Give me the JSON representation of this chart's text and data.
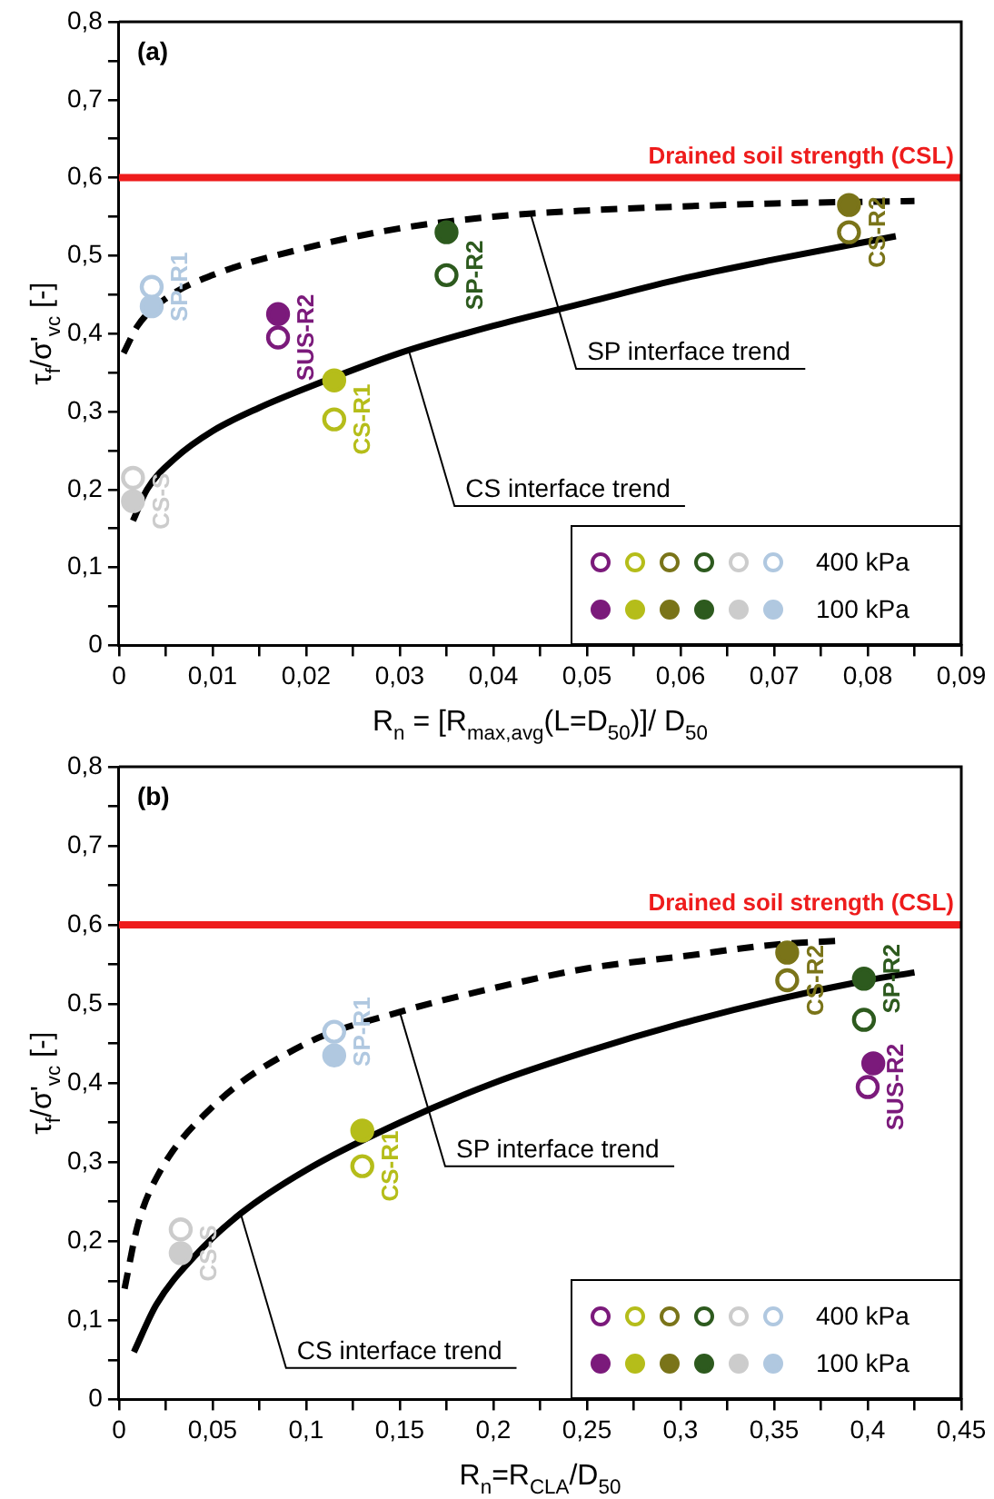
{
  "chart_data": [
    {
      "type": "scatter",
      "title": "(a)",
      "xlabel": "R$_{n}$ = [R$_{max,avg}$(L=D$_{50}$)]/ D$_{50}$",
      "ylabel": "τ$_{f}$/σ'$_{vc}$ [-]",
      "marker": "circle",
      "legend": "bottom right",
      "xlim": [
        0,
        0.09
      ],
      "ylim": [
        0,
        0.8
      ],
      "xticks": [
        0,
        {
          "value": 0.005,
          "label": null
        },
        {
          "value": 0.01,
          "label": "0,01"
        },
        {
          "value": 0.015,
          "label": null
        },
        {
          "value": 0.02,
          "label": "0,02"
        },
        {
          "value": 0.025,
          "label": null
        },
        {
          "value": 0.03,
          "label": "0,03"
        },
        {
          "value": 0.035,
          "label": null
        },
        {
          "value": 0.04,
          "label": "0,04"
        },
        {
          "value": 0.045,
          "label": null
        },
        {
          "value": 0.05,
          "label": "0,05"
        },
        {
          "value": 0.055,
          "label": null
        },
        {
          "value": 0.06,
          "label": "0,06"
        },
        {
          "value": 0.065,
          "label": null
        },
        {
          "value": 0.07,
          "label": "0,07"
        },
        {
          "value": 0.075,
          "label": null
        },
        {
          "value": 0.08,
          "label": "0,08"
        },
        {
          "value": 0.085,
          "label": null
        },
        {
          "value": 0.09,
          "label": "0,09"
        }
      ],
      "yticks": [
        0,
        {
          "value": 0.05,
          "label": null
        },
        {
          "value": 0.1,
          "label": "0,1"
        },
        {
          "value": 0.15,
          "label": null
        },
        {
          "value": 0.2,
          "label": "0,2"
        },
        {
          "value": 0.25,
          "label": null
        },
        {
          "value": 0.3,
          "label": "0,3"
        },
        {
          "value": 0.35,
          "label": null
        },
        {
          "value": 0.4,
          "label": "0,4"
        },
        {
          "value": 0.45,
          "label": null
        },
        {
          "value": 0.5,
          "label": "0,5"
        },
        {
          "value": 0.55,
          "label": null
        },
        {
          "value": 0.6,
          "label": "0,6"
        },
        {
          "value": 0.65,
          "label": null
        },
        {
          "value": 0.7,
          "label": "0,7"
        },
        {
          "value": 0.75,
          "label": null
        },
        {
          "value": 0.8,
          "label": "0,8"
        }
      ],
      "ref_lines": [
        {
          "axis": "y",
          "value": 0.6,
          "label": "Drained soil strength (CSL)",
          "color": "#ee1c1c"
        }
      ],
      "series": [
        {
          "name": "400 kPa",
          "x": [
            0.017,
            0.023,
            0.078,
            0.035,
            0.0015,
            0.0035
          ],
          "values": [
            0.395,
            0.29,
            0.53,
            0.475,
            0.215,
            0.46
          ],
          "colors": [
            "#7b1a7b",
            "#b5bd1a",
            "#7a7419",
            "#2d5a1e",
            "#cccccc",
            "#b0c8e0"
          ]
        },
        {
          "name": "100 kPa",
          "x": [
            0.017,
            0.023,
            0.078,
            0.035,
            0.0015,
            0.0035
          ],
          "values": [
            0.425,
            0.34,
            0.565,
            0.53,
            0.185,
            0.435
          ],
          "colors": [
            "#7b1a7b",
            "#b5bd1a",
            "#7a7419",
            "#2d5a1e",
            "#cccccc",
            "#b0c8e0"
          ]
        },
        {
          "type": "line",
          "marker": "none",
          "line_style": "dashed",
          "color": "#000000",
          "x": [
            0.0005,
            0.002,
            0.005,
            0.01,
            0.02,
            0.03,
            0.04,
            0.05,
            0.06,
            0.07,
            0.085
          ],
          "values": [
            0.375,
            0.41,
            0.445,
            0.475,
            0.51,
            0.535,
            0.55,
            0.558,
            0.563,
            0.567,
            0.57
          ]
        },
        {
          "type": "line",
          "marker": "none",
          "line_style": "solid",
          "color": "#000000",
          "x": [
            0.0015,
            0.003,
            0.006,
            0.01,
            0.015,
            0.02,
            0.03,
            0.04,
            0.05,
            0.06,
            0.07,
            0.083
          ],
          "values": [
            0.16,
            0.2,
            0.24,
            0.275,
            0.305,
            0.33,
            0.375,
            0.41,
            0.44,
            0.47,
            0.495,
            0.525
          ]
        }
      ],
      "annotations": [
        {
          "text": "SP-R1",
          "x": 0.0035,
          "y": 0.46
        },
        {
          "text": "SUS-R2",
          "x": 0.017,
          "y": 0.395
        },
        {
          "text": "CS-R1",
          "x": 0.023,
          "y": 0.29
        },
        {
          "text": "CS-S",
          "x": 0.0015,
          "y": 0.185
        },
        {
          "text": "SP-R2",
          "x": 0.035,
          "y": 0.475
        },
        {
          "text": "CS-R2",
          "x": 0.078,
          "y": 0.53
        },
        {
          "text": "SP interface trend",
          "x": 0.044,
          "y": 0.553
        },
        {
          "text": "CS interface trend",
          "x": 0.031,
          "y": 0.377
        }
      ]
    },
    {
      "type": "scatter",
      "title": "(b)",
      "xlabel": "R$_{n}$=R$_{CLA}$/D$_{50}$",
      "ylabel": "τ$_{f}$/σ'$_{vc}$ [-]",
      "marker": "circle",
      "legend": "bottom right",
      "xlim": [
        0,
        0.45
      ],
      "ylim": [
        0,
        0.8
      ],
      "xticks": [
        0,
        {
          "value": 0.025,
          "label": null
        },
        {
          "value": 0.05,
          "label": "0,05"
        },
        {
          "value": 0.075,
          "label": null
        },
        {
          "value": 0.1,
          "label": "0,1"
        },
        {
          "value": 0.125,
          "label": null
        },
        {
          "value": 0.15,
          "label": "0,15"
        },
        {
          "value": 0.175,
          "label": null
        },
        {
          "value": 0.2,
          "label": "0,2"
        },
        {
          "value": 0.225,
          "label": null
        },
        {
          "value": 0.25,
          "label": "0,25"
        },
        {
          "value": 0.275,
          "label": null
        },
        {
          "value": 0.3,
          "label": "0,3"
        },
        {
          "value": 0.325,
          "label": null
        },
        {
          "value": 0.35,
          "label": "0,35"
        },
        {
          "value": 0.375,
          "label": null
        },
        {
          "value": 0.4,
          "label": "0,4"
        },
        {
          "value": 0.425,
          "label": null
        },
        {
          "value": 0.45,
          "label": "0,45"
        }
      ],
      "yticks": [
        0,
        {
          "value": 0.05,
          "label": null
        },
        {
          "value": 0.1,
          "label": "0,1"
        },
        {
          "value": 0.15,
          "label": null
        },
        {
          "value": 0.2,
          "label": "0,2"
        },
        {
          "value": 0.25,
          "label": null
        },
        {
          "value": 0.3,
          "label": "0,3"
        },
        {
          "value": 0.35,
          "label": null
        },
        {
          "value": 0.4,
          "label": "0,4"
        },
        {
          "value": 0.45,
          "label": null
        },
        {
          "value": 0.5,
          "label": "0,5"
        },
        {
          "value": 0.55,
          "label": null
        },
        {
          "value": 0.6,
          "label": "0,6"
        },
        {
          "value": 0.65,
          "label": null
        },
        {
          "value": 0.7,
          "label": "0,7"
        },
        {
          "value": 0.75,
          "label": null
        },
        {
          "value": 0.8,
          "label": "0,8"
        }
      ],
      "ref_lines": [
        {
          "axis": "y",
          "value": 0.6,
          "label": "Drained soil strength (CSL)",
          "color": "#ee1c1c"
        }
      ],
      "series": [
        {
          "name": "400 kPa",
          "x": [
            0.4,
            0.13,
            0.357,
            0.398,
            0.033,
            0.115
          ],
          "values": [
            0.395,
            0.295,
            0.53,
            0.48,
            0.215,
            0.465
          ],
          "colors": [
            "#7b1a7b",
            "#b5bd1a",
            "#7a7419",
            "#2d5a1e",
            "#cccccc",
            "#b0c8e0"
          ]
        },
        {
          "name": "100 kPa",
          "x": [
            0.403,
            0.13,
            0.357,
            0.398,
            0.033,
            0.115
          ],
          "values": [
            0.425,
            0.34,
            0.565,
            0.532,
            0.185,
            0.435
          ],
          "colors": [
            "#7b1a7b",
            "#b5bd1a",
            "#7a7419",
            "#2d5a1e",
            "#cccccc",
            "#b0c8e0"
          ]
        },
        {
          "type": "line",
          "marker": "none",
          "line_style": "dashed",
          "color": "#000000",
          "x": [
            0.003,
            0.01,
            0.02,
            0.05,
            0.1,
            0.15,
            0.2,
            0.25,
            0.3,
            0.35,
            0.385
          ],
          "values": [
            0.14,
            0.22,
            0.28,
            0.37,
            0.45,
            0.49,
            0.52,
            0.545,
            0.56,
            0.575,
            0.58
          ]
        },
        {
          "type": "line",
          "marker": "none",
          "line_style": "solid",
          "color": "#000000",
          "x": [
            0.008,
            0.02,
            0.04,
            0.065,
            0.1,
            0.15,
            0.2,
            0.25,
            0.3,
            0.35,
            0.4,
            0.425
          ],
          "values": [
            0.06,
            0.12,
            0.18,
            0.235,
            0.29,
            0.35,
            0.4,
            0.44,
            0.475,
            0.505,
            0.53,
            0.54
          ]
        }
      ],
      "annotations": [
        {
          "text": "SP-R1",
          "x": 0.115,
          "y": 0.465
        },
        {
          "text": "CS-R1",
          "x": 0.13,
          "y": 0.295
        },
        {
          "text": "CS-S",
          "x": 0.033,
          "y": 0.185
        },
        {
          "text": "CS-R2",
          "x": 0.357,
          "y": 0.53
        },
        {
          "text": "SUS-R2",
          "x": 0.4,
          "y": 0.395
        },
        {
          "text": "SP-R2",
          "x": 0.398,
          "y": 0.532
        },
        {
          "text": "SP interface trend",
          "x": 0.15,
          "y": 0.49
        },
        {
          "text": "CS interface trend",
          "x": 0.065,
          "y": 0.235
        }
      ]
    }
  ]
}
